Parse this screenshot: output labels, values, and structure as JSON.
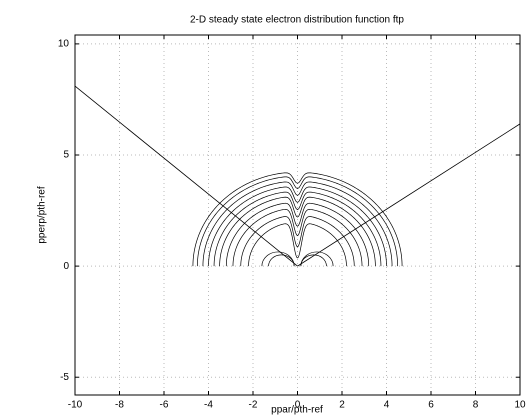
{
  "chart_data": {
    "type": "contour",
    "title": "2-D steady state electron distribution function ftp",
    "x_label": "ppar/pth-ref",
    "y_label": "pperp/pth-ref",
    "xlim": [
      -10,
      10
    ],
    "ylim": [
      -5.8,
      10.4
    ],
    "xticks": [
      -10,
      -8,
      -6,
      -4,
      -2,
      0,
      2,
      4,
      6,
      8,
      10
    ],
    "yticks": [
      -5,
      0,
      5,
      10
    ],
    "grid": true,
    "color": "#000000",
    "lines": [
      {
        "x": [
          -10,
          0
        ],
        "y": [
          8.1,
          0
        ]
      },
      {
        "x": [
          0,
          10
        ],
        "y": [
          0,
          6.4
        ]
      }
    ],
    "contour_radii": [
      1.3,
      1.6,
      2.2,
      2.55,
      2.9,
      3.2,
      3.5,
      3.75,
      4.0,
      4.25,
      4.5,
      4.7
    ]
  }
}
